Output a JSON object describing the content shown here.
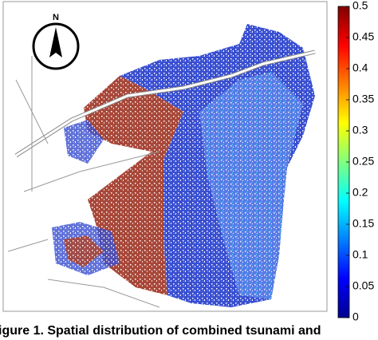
{
  "map": {
    "north_label": "N",
    "colorbar": {
      "lim": [
        0,
        0.5
      ],
      "ticks": [
        0,
        0.05,
        0.1,
        0.15,
        0.2,
        0.25,
        0.3,
        0.35,
        0.4,
        0.45,
        0.5
      ]
    },
    "caption": "igure 1.   Spatial distribution of combined tsunami and"
  }
}
